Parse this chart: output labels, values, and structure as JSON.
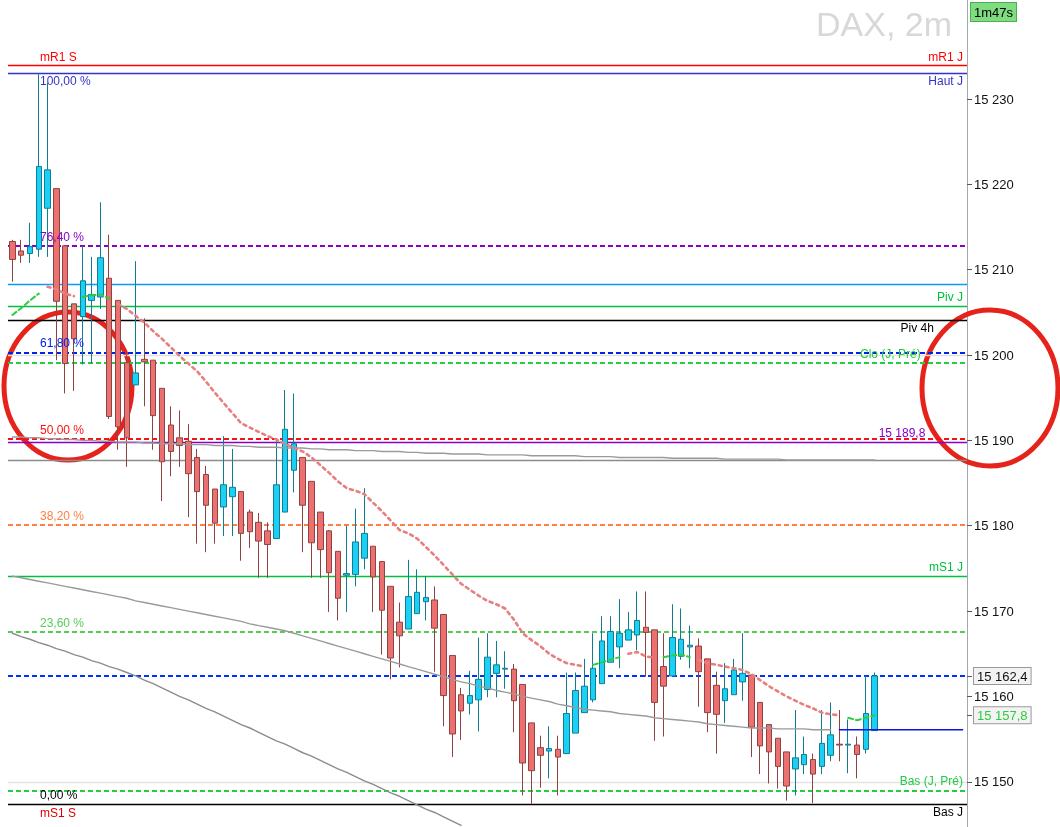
{
  "chart_data": {
    "type": "candlestick",
    "title": "DAX, 2m",
    "tick_labels": "y",
    "categories": [
      null,
      null,
      null,
      null,
      null,
      null,
      null,
      null,
      null,
      null,
      null,
      null,
      null,
      null,
      null,
      null,
      null,
      null,
      null,
      null,
      null,
      null,
      null,
      null,
      null,
      null,
      null,
      null,
      null,
      null,
      null,
      null,
      null,
      null,
      null,
      null,
      null,
      null,
      null,
      null,
      null,
      null,
      null,
      null,
      null,
      null,
      null,
      null,
      null,
      null,
      null,
      null,
      null,
      null,
      null,
      null,
      null,
      null,
      null,
      null,
      null,
      null,
      null,
      null,
      null,
      null,
      null,
      null,
      null,
      null,
      null,
      null,
      null,
      null,
      null,
      null,
      null,
      null,
      null,
      null,
      null,
      null,
      null,
      null,
      null,
      null,
      null,
      null,
      null,
      null,
      null,
      null,
      null,
      null,
      null,
      null,
      null,
      null,
      null,
      null,
      null,
      null,
      null,
      null,
      null,
      null,
      null,
      null,
      null
    ],
    "ylim": [
      15144.7,
      15241.6
    ],
    "yticks": [
      {
        "value": 15150,
        "label": "15 150"
      },
      {
        "value": 15160,
        "label": "15 160"
      },
      {
        "value": 15170,
        "label": "15 170"
      },
      {
        "value": 15180,
        "label": "15 180"
      },
      {
        "value": 15190,
        "label": "15 190"
      },
      {
        "value": 15200,
        "label": "15 200"
      },
      {
        "value": 15210,
        "label": "15 210"
      },
      {
        "value": 15220,
        "label": "15 220"
      },
      {
        "value": 15230,
        "label": "15 230"
      },
      {
        "value": 15157.8,
        "label": "15 157,8"
      },
      {
        "value": 15162.4,
        "label": "15 162,4"
      }
    ],
    "series": [
      {
        "type": "line",
        "color": "#9a9a9a",
        "line_style": "solid",
        "values": [
          15190.4,
          15190.4,
          15190.3,
          15190.3,
          15190.2,
          15190.2,
          15190.1,
          15190.1,
          15190.0,
          15190.0,
          15189.9,
          15189.9,
          15189.8,
          15189.8,
          15189.8,
          15189.7,
          15189.7,
          15189.6,
          15189.6,
          15189.6,
          15189.5,
          15189.5,
          15189.5,
          15189.4,
          15189.4,
          15189.4,
          15189.3,
          15189.3,
          15189.2,
          15189.2,
          15189.2,
          15189.1,
          15189.1,
          15189.1,
          15189.0,
          15189.0,
          15188.9,
          15188.9,
          15188.9,
          15188.8,
          15188.8,
          15188.8,
          15188.7,
          15188.7,
          15188.7,
          15188.6,
          15188.6,
          15188.5,
          15188.5,
          15188.5,
          15188.4,
          15188.4,
          15188.4,
          15188.4,
          15188.3,
          15188.3,
          15188.3,
          15188.3,
          15188.3,
          15188.2,
          15188.2,
          15188.2,
          15188.2,
          15188.2,
          15188.2,
          15188.1,
          15188.1,
          15188.1,
          15188.1,
          15188.0,
          15188.0,
          15188.0,
          15188.0,
          15188.0,
          15188.0,
          15187.9,
          15187.9,
          15187.9,
          15187.9,
          15187.9,
          15187.9,
          15187.8,
          15187.8,
          15187.8,
          15187.8,
          15187.8,
          15187.8,
          15187.8,
          15187.7,
          15187.7,
          15187.7,
          15187.7,
          15187.7,
          15187.7,
          15187.7,
          15187.7,
          15187.7,
          15187.7,
          15187.7,
          null,
          null,
          null,
          null,
          null,
          null,
          null,
          null,
          null,
          null
        ]
      },
      {
        "type": "line",
        "color": "#9a9a9a",
        "line_style": "solid",
        "values": [
          15174.1,
          15173.9,
          15173.7,
          15173.5,
          15173.3,
          15173.1,
          15172.9,
          15172.7,
          15172.5,
          15172.3,
          15172.1,
          15171.9,
          15171.7,
          15171.5,
          15171.2,
          15171.0,
          15170.8,
          15170.6,
          15170.4,
          15170.2,
          15170.0,
          15169.8,
          15169.6,
          15169.4,
          15169.2,
          15169.0,
          15168.8,
          15168.5,
          15168.3,
          15168.1,
          15167.9,
          15167.7,
          15167.4,
          15167.1,
          15166.8,
          15166.5,
          15166.2,
          15165.9,
          15165.6,
          15165.3,
          15165.0,
          15164.7,
          15164.4,
          15164.1,
          15163.8,
          15163.5,
          15163.2,
          15162.9,
          15162.6,
          15162.3,
          15162.0,
          15161.7,
          15161.5,
          15161.2,
          15161.0,
          15160.7,
          15160.5,
          15160.3,
          15160.0,
          15159.8,
          15159.6,
          15159.4,
          15159.1,
          15158.9,
          15158.7,
          15158.5,
          15158.4,
          15158.3,
          15158.2,
          15158.0,
          15157.9,
          15157.8,
          15157.7,
          15157.5,
          15157.4,
          15157.3,
          15157.2,
          15157.1,
          15157.0,
          15156.8,
          15156.7,
          15156.6,
          15156.5,
          15156.4,
          15156.3,
          15156.3,
          15156.3,
          15156.2,
          15156.2,
          15156.2,
          15156.2,
          15156.1,
          15156.1,
          15156.1,
          null,
          null,
          null,
          null,
          null,
          null,
          null,
          null,
          null,
          null,
          null,
          null,
          null,
          null,
          null
        ]
      },
      {
        "type": "line",
        "color": "#8c8c8c",
        "line_style": "solid",
        "values": [
          15167.4,
          15167.0,
          15166.7,
          15166.3,
          15166.0,
          15165.6,
          15165.3,
          15164.9,
          15164.6,
          15164.2,
          15163.9,
          15163.5,
          15163.2,
          15162.8,
          15162.4,
          15161.9,
          15161.5,
          15161.0,
          15160.5,
          15160.0,
          15159.6,
          15159.1,
          15158.6,
          15158.2,
          15157.7,
          15157.2,
          15156.7,
          15156.3,
          15155.8,
          15155.3,
          15154.8,
          15154.4,
          15153.9,
          15153.4,
          15153.0,
          15152.5,
          15152.0,
          15151.5,
          15151.1,
          15150.6,
          15150.1,
          15149.7,
          15149.2,
          15148.7,
          15148.3,
          15147.8,
          15147.3,
          15146.8,
          15146.4,
          15145.9,
          15145.4,
          15144.9,
          null,
          null,
          null,
          null,
          null,
          null,
          null,
          null,
          null,
          null,
          null,
          null,
          null,
          null,
          null,
          null,
          null,
          null,
          null,
          null,
          null,
          null,
          null,
          null,
          null,
          null,
          null,
          null,
          null,
          null,
          null,
          null,
          null,
          null,
          null,
          null,
          null,
          null,
          null,
          null,
          null,
          null,
          null,
          null,
          null,
          null,
          null,
          null,
          null,
          null,
          null,
          null,
          null,
          null,
          null,
          null,
          null
        ]
      },
      {
        "type": "line",
        "color": "#0a14e6",
        "line_style": "solid",
        "values": [
          null,
          null,
          null,
          null,
          null,
          null,
          null,
          null,
          null,
          null,
          null,
          null,
          null,
          null,
          null,
          null,
          null,
          null,
          null,
          null,
          null,
          null,
          null,
          null,
          null,
          null,
          null,
          null,
          null,
          null,
          null,
          null,
          null,
          null,
          null,
          null,
          null,
          null,
          null,
          null,
          null,
          null,
          null,
          null,
          null,
          null,
          null,
          null,
          null,
          null,
          null,
          null,
          null,
          null,
          null,
          null,
          null,
          null,
          null,
          null,
          null,
          null,
          null,
          null,
          null,
          null,
          null,
          null,
          null,
          null,
          null,
          null,
          null,
          null,
          null,
          null,
          null,
          null,
          null,
          null,
          null,
          null,
          null,
          null,
          null,
          null,
          null,
          null,
          null,
          null,
          null,
          null,
          null,
          null,
          15156.1,
          15156.1,
          15156.1,
          15156.1,
          15156.1,
          15156.1,
          15156.1,
          15156.1,
          15156.1,
          15156.1,
          15156.1,
          15156.1,
          15156.1,
          15156.1,
          15156.1
        ]
      },
      {
        "type": "line",
        "color": "#e87f7f",
        "line_style": "dotted",
        "values": [
          null,
          null,
          null,
          null,
          15208.0,
          15207.7,
          15207.2,
          15206.9,
          null,
          null,
          null,
          null,
          15206.0,
          15205.4,
          15204.6,
          15203.8,
          15202.8,
          15201.9,
          15200.9,
          15199.9,
          15199.0,
          15198.1,
          15196.9,
          15195.6,
          15194.4,
          15193.2,
          15192.0,
          15191.5,
          15191.0,
          15190.5,
          15190.1,
          15189.6,
          15189.1,
          15188.7,
          15188.0,
          15187.1,
          15186.2,
          15185.2,
          15184.4,
          15184.1,
          15183.7,
          15182.7,
          15181.7,
          15180.6,
          15179.5,
          15179.1,
          15178.5,
          15177.5,
          15176.5,
          15175.4,
          15174.3,
          15173.2,
          15172.5,
          15171.8,
          15171.2,
          15170.8,
          15170.3,
          15169.0,
          15167.4,
          15166.6,
          15165.9,
          15165.0,
          15164.4,
          15163.9,
          15163.7,
          15163.5,
          null,
          null,
          null,
          null,
          15165.0,
          15165.2,
          15164.7,
          15164.5,
          null,
          null,
          null,
          null,
          15164.3,
          15163.9,
          15163.7,
          15163.5,
          15163.3,
          15163.1,
          15162.6,
          15161.9,
          15161.2,
          15160.6,
          15160.0,
          15159.5,
          15159.0,
          15158.6,
          15158.1,
          15157.9,
          15157.8,
          null,
          null,
          null,
          null,
          null,
          null,
          null,
          null,
          null,
          null,
          null,
          null,
          null,
          null
        ]
      },
      {
        "type": "line",
        "color": "#2ecc40",
        "line_style": "dashed",
        "values": [
          15204.7,
          15205.5,
          15206.4,
          15207.2,
          null,
          null,
          null,
          null,
          15206.8,
          15207.0,
          15207.1,
          15206.6,
          null,
          null,
          null,
          null,
          null,
          null,
          null,
          null,
          null,
          null,
          null,
          null,
          null,
          null,
          null,
          null,
          null,
          null,
          null,
          null,
          null,
          null,
          null,
          null,
          null,
          null,
          null,
          null,
          null,
          null,
          null,
          null,
          null,
          null,
          null,
          null,
          null,
          null,
          null,
          null,
          null,
          null,
          null,
          null,
          null,
          null,
          null,
          null,
          null,
          null,
          null,
          null,
          null,
          null,
          15163.7,
          15164.0,
          15164.3,
          15164.6,
          null,
          null,
          null,
          null,
          15164.6,
          15164.8,
          15164.9,
          15164.6,
          null,
          null,
          null,
          null,
          null,
          null,
          null,
          null,
          null,
          null,
          null,
          null,
          null,
          null,
          null,
          null,
          null,
          15157.5,
          15157.2,
          15157.5,
          15157.8,
          null,
          null,
          null,
          null,
          null,
          null,
          null,
          null,
          null,
          null
        ]
      },
      {
        "ohlc": [
          [
            15213.3,
            15213.5,
            15208.6,
            15211.2
          ],
          [
            15212.2,
            15213.5,
            15210.8,
            15211.7
          ],
          [
            15211.9,
            15215.5,
            15210.8,
            15212.7
          ],
          [
            15212.4,
            15233.0,
            15211.5,
            15222.1
          ],
          [
            15217.2,
            15231.9,
            15211.5,
            15221.7
          ],
          [
            15219.5,
            15219.5,
            15199.4,
            15206.3
          ],
          [
            15212.8,
            15212.8,
            15195.5,
            15199.0
          ],
          [
            15206.0,
            15206.0,
            15195.8,
            15201.9
          ],
          [
            15204.5,
            15212.8,
            15198.9,
            15208.7
          ],
          [
            15206.4,
            15211.5,
            15199.0,
            15207.1
          ],
          [
            15206.8,
            15217.9,
            15205.4,
            15211.4
          ],
          [
            15209.0,
            15214.1,
            15192.5,
            15192.8
          ],
          [
            15206.4,
            15206.4,
            15188.9,
            15191.6
          ],
          [
            15199.1,
            15200.0,
            15186.9,
            15190.3
          ],
          [
            15196.5,
            15211.0,
            15196.5,
            15197.9
          ],
          [
            15199.5,
            15204.3,
            15194.0,
            15199.2
          ],
          [
            15199.4,
            15199.4,
            15188.9,
            15192.9
          ],
          [
            15196.1,
            15196.1,
            15182.9,
            15187.5
          ],
          [
            15191.8,
            15194.0,
            15185.8,
            15188.7
          ],
          [
            15190.3,
            15193.5,
            15186.9,
            15189.4
          ],
          [
            15189.9,
            15191.9,
            15181.0,
            15186.1
          ],
          [
            15188.0,
            15189.0,
            15177.9,
            15184.0
          ],
          [
            15186.0,
            15187.0,
            15176.9,
            15182.4
          ],
          [
            15184.3,
            15184.3,
            15177.9,
            15180.3
          ],
          [
            15182.2,
            15190.5,
            15178.8,
            15184.8
          ],
          [
            15183.4,
            15189.0,
            15178.8,
            15184.5
          ],
          [
            15184.0,
            15184.0,
            15175.9,
            15179.1
          ],
          [
            15181.6,
            15181.9,
            15177.4,
            15179.3
          ],
          [
            15180.4,
            15181.5,
            15173.9,
            15178.2
          ],
          [
            15179.4,
            15180.4,
            15173.9,
            15177.8
          ],
          [
            15178.5,
            15189.9,
            15178.5,
            15184.8
          ],
          [
            15181.6,
            15195.9,
            15181.6,
            15191.3
          ],
          [
            15186.5,
            15195.5,
            15183.9,
            15189.6
          ],
          [
            15188.0,
            15188.0,
            15176.9,
            15182.4
          ],
          [
            15185.2,
            15185.2,
            15173.9,
            15178.0
          ],
          [
            15181.6,
            15181.6,
            15173.9,
            15177.2
          ],
          [
            15179.4,
            15179.5,
            15169.9,
            15174.5
          ],
          [
            15177.0,
            15177.0,
            15168.9,
            15171.5
          ],
          [
            15174.2,
            15180.0,
            15169.9,
            15174.4
          ],
          [
            15174.3,
            15182.0,
            15172.9,
            15178.1
          ],
          [
            15176.2,
            15184.4,
            15174.9,
            15179.1
          ],
          [
            15177.6,
            15177.6,
            15169.9,
            15174.0
          ],
          [
            15175.8,
            15175.8,
            15164.9,
            15170.1
          ],
          [
            15172.9,
            15172.9,
            15162.0,
            15164.5
          ],
          [
            15168.7,
            15171.0,
            15163.4,
            15167.1
          ],
          [
            15167.9,
            15176.0,
            15167.9,
            15171.7
          ],
          [
            15169.7,
            15174.9,
            15169.7,
            15172.2
          ],
          [
            15171.1,
            15174.1,
            15168.9,
            15171.6
          ],
          [
            15171.3,
            15172.9,
            15162.9,
            15168.0
          ],
          [
            15169.6,
            15169.6,
            15156.5,
            15160.1
          ],
          [
            15164.8,
            15164.8,
            15152.9,
            15155.6
          ],
          [
            15160.2,
            15161.0,
            15154.9,
            15158.3
          ],
          [
            15159.2,
            15163.0,
            15157.9,
            15160.1
          ],
          [
            15159.6,
            15166.9,
            15155.9,
            15162.0
          ],
          [
            15160.8,
            15167.4,
            15159.9,
            15164.6
          ],
          [
            15162.7,
            15166.5,
            15159.9,
            15163.7
          ],
          [
            15163.2,
            15165.3,
            15160.9,
            15163.3
          ],
          [
            15163.2,
            15163.8,
            15155.8,
            15159.5
          ],
          [
            15161.4,
            15161.4,
            15148.4,
            15152.2
          ],
          [
            15156.9,
            15156.9,
            15147.4,
            15151.3
          ],
          [
            15154.0,
            15155.4,
            15149.3,
            15153.1
          ],
          [
            15153.6,
            15156.5,
            15150.4,
            15153.9
          ],
          [
            15153.8,
            15155.4,
            15148.4,
            15152.9
          ],
          [
            15153.3,
            15162.8,
            15153.3,
            15158.0
          ],
          [
            15155.7,
            15162.8,
            15155.7,
            15160.7
          ],
          [
            15158.1,
            15164.4,
            15158.1,
            15161.2
          ],
          [
            15159.6,
            15167.4,
            15159.3,
            15163.3
          ],
          [
            15161.5,
            15169.4,
            15161.5,
            15166.5
          ],
          [
            15164.0,
            15169.4,
            15164.0,
            15167.6
          ],
          [
            15165.8,
            15171.4,
            15163.3,
            15167.4
          ],
          [
            15166.6,
            15169.9,
            15166.6,
            15167.8
          ],
          [
            15167.2,
            15172.3,
            15165.4,
            15168.9
          ],
          [
            15168.1,
            15172.3,
            15162.3,
            15167.5
          ],
          [
            15167.8,
            15167.8,
            15154.8,
            15159.3
          ],
          [
            15163.5,
            15167.4,
            15155.3,
            15161.2
          ],
          [
            15162.4,
            15170.8,
            15162.4,
            15166.9
          ],
          [
            15164.7,
            15170.3,
            15164.3,
            15166.7
          ],
          [
            15165.8,
            15168.3,
            15163.3,
            15166.0
          ],
          [
            15165.9,
            15166.8,
            15158.8,
            15162.9
          ],
          [
            15164.4,
            15164.4,
            15155.8,
            15158.1
          ],
          [
            15161.3,
            15162.9,
            15153.3,
            15157.9
          ],
          [
            15159.5,
            15163.9,
            15156.9,
            15160.9
          ],
          [
            15160.2,
            15164.4,
            15160.2,
            15163.1
          ],
          [
            15161.7,
            15167.4,
            15159.5,
            15162.7
          ],
          [
            15162.5,
            15162.5,
            15152.9,
            15156.4
          ],
          [
            15159.3,
            15159.3,
            15150.9,
            15154.2
          ],
          [
            15156.7,
            15156.7,
            15149.8,
            15153.5
          ],
          [
            15155.1,
            15155.1,
            15149.2,
            15151.8
          ],
          [
            15153.5,
            15153.5,
            15147.8,
            15149.5
          ],
          [
            15151.5,
            15158.4,
            15148.4,
            15152.8
          ],
          [
            15152.0,
            15155.3,
            15150.9,
            15153.2
          ],
          [
            15152.6,
            15153.3,
            15147.5,
            15150.9
          ],
          [
            15151.8,
            15158.4,
            15150.9,
            15154.5
          ],
          [
            15153.1,
            15159.3,
            15152.4,
            15155.5
          ],
          [
            15154.4,
            15158.4,
            15152.4,
            15154.3
          ],
          [
            15154.3,
            15157.3,
            15151.0,
            15154.4
          ],
          [
            15154.3,
            15155.3,
            15150.4,
            15153.2
          ],
          [
            15153.8,
            15162.4,
            15153.3,
            15158.0
          ],
          [
            15156.0,
            15162.8,
            15156.0,
            15162.4
          ],
          null,
          null,
          null,
          null,
          null,
          null,
          null,
          null,
          null,
          null
        ],
        "colors": [
          "#ec7070",
          "#ec7070",
          "#1ad1f5",
          "#1ad1f5",
          "#1ad1f5",
          "#ec7070",
          "#ec7070",
          "#ec7070",
          "#1ad1f5",
          "#1ad1f5",
          "#1ad1f5",
          "#ec7070",
          "#ec7070",
          "#ec7070",
          "#1ad1f5",
          "#ec7070",
          "#ec7070",
          "#ec7070",
          "#ec7070",
          "#ec7070",
          "#ec7070",
          "#ec7070",
          "#ec7070",
          "#ec7070",
          "#1ad1f5",
          "#1ad1f5",
          "#ec7070",
          "#ec7070",
          "#ec7070",
          "#ec7070",
          "#1ad1f5",
          "#1ad1f5",
          "#1ad1f5",
          "#ec7070",
          "#ec7070",
          "#ec7070",
          "#ec7070",
          "#ec7070",
          "#1ad1f5",
          "#1ad1f5",
          "#1ad1f5",
          "#ec7070",
          "#ec7070",
          "#ec7070",
          "#ec7070",
          "#1ad1f5",
          "#1ad1f5",
          "#1ad1f5",
          "#ec7070",
          "#ec7070",
          "#ec7070",
          "#ec7070",
          "#1ad1f5",
          "#1ad1f5",
          "#1ad1f5",
          "#1ad1f5",
          "#1ad1f5",
          "#ec7070",
          "#ec7070",
          "#ec7070",
          "#ec7070",
          "#1ad1f5",
          "#ec7070",
          "#1ad1f5",
          "#1ad1f5",
          "#1ad1f5",
          "#1ad1f5",
          "#1ad1f5",
          "#1ad1f5",
          "#1ad1f5",
          "#1ad1f5",
          "#1ad1f5",
          "#ec7070",
          "#ec7070",
          "#ec7070",
          "#1ad1f5",
          "#1ad1f5",
          "#1ad1f5",
          "#ec7070",
          "#ec7070",
          "#ec7070",
          "#1ad1f5",
          "#1ad1f5",
          "#1ad1f5",
          "#ec7070",
          "#ec7070",
          "#ec7070",
          "#ec7070",
          "#ec7070",
          "#1ad1f5",
          "#1ad1f5",
          "#ec7070",
          "#1ad1f5",
          "#1ad1f5",
          "#ec7070",
          "#1ad1f5",
          "#ec7070",
          "#1ad1f5",
          "#1ad1f5",
          null,
          null,
          null,
          null,
          null,
          null,
          null,
          null,
          null,
          null
        ]
      }
    ],
    "ref_lines": [
      {
        "axis": "y",
        "value": 15233.9,
        "label": "mR1 J",
        "color": "#ff0000",
        "line_style": "solid"
      },
      {
        "axis": "y",
        "value": 15233.0,
        "label": "Haut J",
        "color": "#3333cc",
        "line_style": "solid"
      },
      {
        "axis": "y",
        "value": 15212.8,
        "color": "#8a00c8",
        "line_style": "dashed"
      },
      {
        "axis": "y",
        "value": 15208.3,
        "color": "#0a9cf5",
        "line_style": "solid"
      },
      {
        "axis": "y",
        "value": 15205.7,
        "label": "Piv J",
        "color": "#00c040",
        "line_style": "solid"
      },
      {
        "axis": "y",
        "value": 15204.1,
        "label": "Piv 4h",
        "color": "#000000",
        "line_style": "solid"
      },
      {
        "axis": "y",
        "value": 15200.3,
        "color": "#0022ee",
        "line_style": "dashed"
      },
      {
        "axis": "y",
        "value": 15200,
        "color": "#e2e2e2",
        "line_style": "solid"
      },
      {
        "axis": "y",
        "value": 15199.1,
        "label": "Clo (J, Pré)",
        "color": "#22cc44",
        "line_style": "dashed"
      },
      {
        "axis": "y",
        "value": 15190.2,
        "color": "#ff1010",
        "line_style": "dashed"
      },
      {
        "axis": "y",
        "value": 15189.8,
        "label": "15 189,8",
        "color": "#8a00c8",
        "line_style": "solid"
      },
      {
        "axis": "y",
        "value": 15187.7,
        "color": "#8c8c8c",
        "line_style": "solid"
      },
      {
        "axis": "y",
        "value": 15180.1,
        "color": "#ff7f40",
        "line_style": "dashed"
      },
      {
        "axis": "y",
        "value": 15174.1,
        "label": "mS1 J",
        "color": "#00c040",
        "line_style": "solid"
      },
      {
        "axis": "y",
        "value": 15167.6,
        "color": "#55cc55",
        "line_style": "dashed"
      },
      {
        "axis": "y",
        "value": 15162.4,
        "color": "#0033ff",
        "line_style": "dashed"
      },
      {
        "axis": "y",
        "value": 15150,
        "color": "#e2e2e2",
        "line_style": "solid"
      },
      {
        "axis": "y",
        "value": 15149.0,
        "label": "Bas (J, Pré)",
        "color": "#22cc44",
        "line_style": "dashed"
      },
      {
        "axis": "y",
        "value": 15147.4,
        "label": "Bas J",
        "color": "#000000",
        "line_style": "solid"
      }
    ],
    "annotations": [
      "1m47s",
      {
        "text": "mR1 S",
        "y": 15233.9
      },
      {
        "text": "100,00 %",
        "y": 15233.0
      },
      {
        "text": "76,40 %",
        "y": 15212.8
      },
      {
        "text": "61,80 %",
        "y": 15200.3
      },
      {
        "text": "50,00 %",
        "y": 15190.2
      },
      {
        "text": "38,20 %",
        "y": 15180.1
      },
      {
        "text": "23,60 %",
        "y": 15167.6
      },
      {
        "text": "0,00 %",
        "y": 15147.4
      },
      {
        "text": "mS1 S",
        "y": 15147.3
      }
    ]
  }
}
